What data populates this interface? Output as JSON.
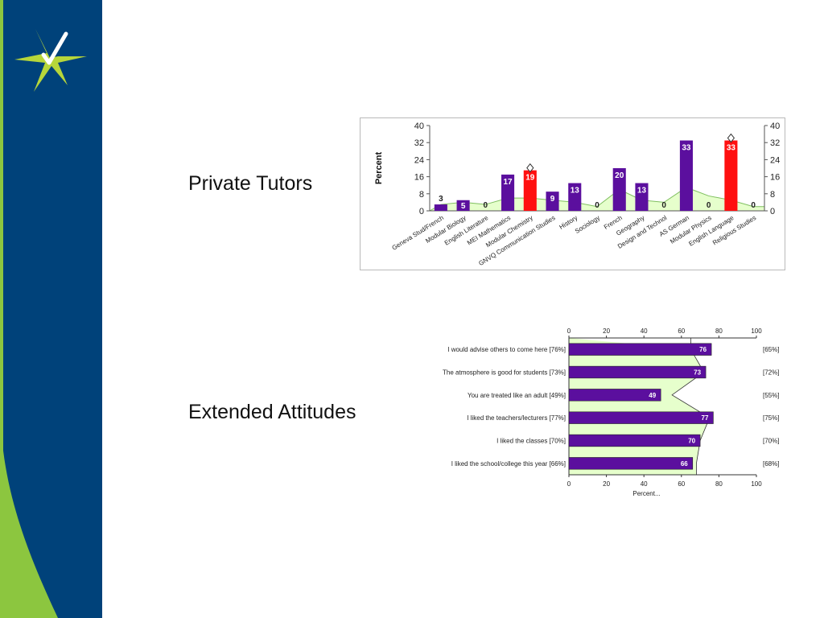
{
  "slide": {
    "labels": {
      "private_tutors": "Private Tutors",
      "extended_attitudes": "Extended Attitudes"
    },
    "colors": {
      "sidebar_blue": "#00427a",
      "sidebar_green": "#8cc63f",
      "accent_star": "#b7d63a"
    },
    "logo_icon": "star-checkmark-icon"
  },
  "chart_data": [
    {
      "type": "bar",
      "ylabel": "Percent",
      "ylim": [
        0,
        40
      ],
      "yticks": [
        0,
        8,
        16,
        24,
        32,
        40
      ],
      "categories": [
        "Geneva Stud/French",
        "Modular Biology",
        "English Literature",
        "MEI Mathematics",
        "Modular Chemistry",
        "GNVQ Communication Studies",
        "History",
        "Sociology",
        "French",
        "Geography",
        "Design and Technol",
        "AS German",
        "Modular Physics",
        "English Language",
        "Religious Studies"
      ],
      "values": [
        3,
        5,
        0,
        17,
        19,
        9,
        13,
        0,
        20,
        13,
        0,
        33,
        0,
        33,
        0
      ],
      "value_labels": [
        "3",
        "5",
        "0",
        "17",
        "19",
        "9",
        "13",
        "0",
        "20",
        "13",
        "0",
        "33",
        "0",
        "33",
        "0"
      ],
      "highlight": [
        false,
        false,
        false,
        false,
        true,
        false,
        false,
        false,
        false,
        false,
        false,
        false,
        false,
        true,
        false
      ],
      "background_area": [
        3,
        4,
        3,
        6,
        6,
        5,
        4,
        2,
        10,
        5,
        4,
        11,
        7,
        5,
        2
      ],
      "colors": {
        "bar": "#5b0f9e",
        "highlight": "#ff1010",
        "area_fill": "#e6ffcc",
        "area_line": "#7fbf5f"
      },
      "grid": false
    },
    {
      "type": "bar",
      "orientation": "horizontal",
      "xlabel": "Percent...",
      "xlim": [
        0,
        100
      ],
      "xticks": [
        0,
        20,
        40,
        60,
        80,
        100
      ],
      "categories": [
        "I would advise others to come here [76%]",
        "The atmosphere is good for students [73%]",
        "You are treated like an adult [49%]",
        "I liked the teachers/lecturers [77%]",
        "I liked the classes [70%]",
        "I liked the school/college this year [66%]"
      ],
      "values": [
        76,
        73,
        49,
        77,
        70,
        66
      ],
      "comparison_values": [
        65,
        72,
        55,
        75,
        70,
        68
      ],
      "comparison_labels": [
        "[65%]",
        "[72%]",
        "[55%]",
        "[75%]",
        "[70%]",
        "[68%]"
      ],
      "colors": {
        "bar": "#5b0f9e",
        "area_fill": "#e6ffcc",
        "area_line": "#333333"
      },
      "grid": false
    }
  ]
}
